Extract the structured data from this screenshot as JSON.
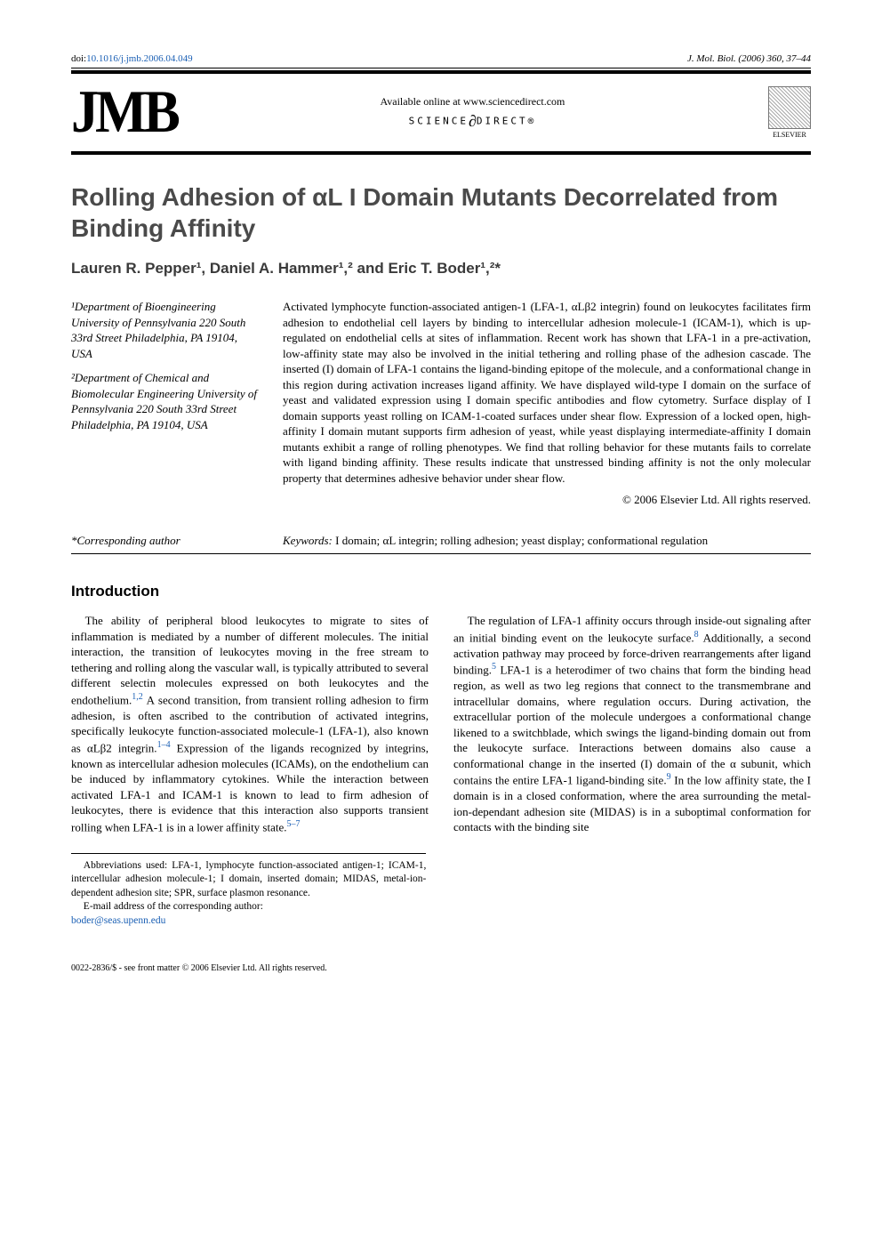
{
  "header": {
    "doi_prefix": "doi:",
    "doi": "10.1016/j.jmb.2006.04.049",
    "journal_ref": "J. Mol. Biol. (2006) 360, 37–44"
  },
  "masthead": {
    "logo": "JMB",
    "available": "Available online at www.sciencedirect.com",
    "sd_left": "SCIENCE",
    "sd_right": "DIRECT®",
    "publisher": "ELSEVIER"
  },
  "title": "Rolling Adhesion of αL I Domain Mutants Decorrelated from Binding Affinity",
  "authors": "Lauren R. Pepper¹, Daniel A. Hammer¹,² and Eric T. Boder¹,²*",
  "affiliations": [
    "¹Department of Bioengineering University of Pennsylvania 220 South 33rd Street Philadelphia, PA 19104, USA",
    "²Department of Chemical and Biomolecular Engineering University of Pennsylvania 220 South 33rd Street Philadelphia, PA 19104, USA"
  ],
  "abstract": "Activated lymphocyte function-associated antigen-1 (LFA-1, αLβ2 integrin) found on leukocytes facilitates firm adhesion to endothelial cell layers by binding to intercellular adhesion molecule-1 (ICAM-1), which is up-regulated on endothelial cells at sites of inflammation. Recent work has shown that LFA-1 in a pre-activation, low-affinity state may also be involved in the initial tethering and rolling phase of the adhesion cascade. The inserted (I) domain of LFA-1 contains the ligand-binding epitope of the molecule, and a conformational change in this region during activation increases ligand affinity. We have displayed wild-type I domain on the surface of yeast and validated expression using I domain specific antibodies and flow cytometry. Surface display of I domain supports yeast rolling on ICAM-1-coated surfaces under shear flow. Expression of a locked open, high-affinity I domain mutant supports firm adhesion of yeast, while yeast displaying intermediate-affinity I domain mutants exhibit a range of rolling phenotypes. We find that rolling behavior for these mutants fails to correlate with ligand binding affinity. These results indicate that unstressed binding affinity is not the only molecular property that determines adhesive behavior under shear flow.",
  "copyright": "© 2006 Elsevier Ltd. All rights reserved.",
  "keywords_label": "Keywords:",
  "keywords": " I domain; αL integrin; rolling adhesion; yeast display; conformational regulation",
  "corresponding": "*Corresponding author",
  "introduction": {
    "heading": "Introduction",
    "p1a": "The ability of peripheral blood leukocytes to migrate to sites of inflammation is mediated by a number of different molecules. The initial interaction, the transition of leukocytes moving in the free stream to tethering and rolling along the vascular wall, is typically attributed to several different selectin molecules expressed on both leukocytes and the endothelium.",
    "ref1": "1,2",
    "p1b": " A second transition, from transient rolling adhesion to firm adhesion, is often ascribed to the contribution of activated integrins, specifically leukocyte function-associated molecule-1 (LFA-1), also known as αLβ2 integrin.",
    "ref2": "1–4",
    "p1c": " Expression of the ligands recognized by integrins, known as intercellular adhesion molecules (ICAMs), on the endothelium can be induced by inflammatory cytokines. While the interaction between activated LFA-1 and ICAM-1 is known to lead to firm adhesion of leukocytes, there is evidence that this interaction also supports transient rolling when LFA-1 is in a lower affinity state.",
    "ref3": "5–7",
    "p2a": "The regulation of LFA-1 affinity occurs through inside-out signaling after an initial binding event on the leukocyte surface.",
    "ref4": "8",
    "p2b": " Additionally, a second activation pathway may proceed by force-driven rearrangements after ligand binding.",
    "ref5": "5",
    "p2c": " LFA-1 is a heterodimer of two chains that form the binding head region, as well as two leg regions that connect to the transmembrane and intracellular domains, where regulation occurs. During activation, the extracellular portion of the molecule undergoes a conformational change likened to a switchblade, which swings the ligand-binding domain out from the leukocyte surface. Interactions between domains also cause a conformational change in the inserted (I) domain of the α subunit, which contains the entire LFA-1 ligand-binding site.",
    "ref6": "9",
    "p2d": " In the low affinity state, the I domain is in a closed conformation, where the area surrounding the metal-ion-dependant adhesion site (MIDAS) is in a suboptimal conformation for contacts with the binding site"
  },
  "footnotes": {
    "abbrev": "Abbreviations used: LFA-1, lymphocyte function-associated antigen-1; ICAM-1, intercellular adhesion molecule-1; I domain, inserted domain; MIDAS, metal-ion-dependent adhesion site; SPR, surface plasmon resonance.",
    "email_label": "E-mail address of the corresponding author:",
    "email": "boder@seas.upenn.edu"
  },
  "footer": "0022-2836/$ - see front matter © 2006 Elsevier Ltd. All rights reserved."
}
